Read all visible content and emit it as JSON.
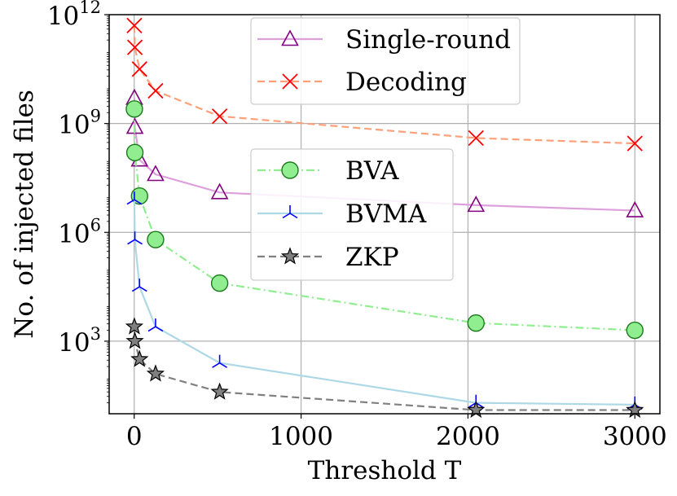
{
  "chart_data": {
    "type": "line",
    "xlabel": "Threshold T",
    "ylabel": "No. of injected files",
    "xlim": [
      -150,
      3150
    ],
    "ylim_log10": [
      1,
      12
    ],
    "yscale": "log",
    "grid": true,
    "x_ticks": [
      0,
      1000,
      2000,
      3000
    ],
    "y_ticks": [
      {
        "base": "10",
        "exp": "3",
        "log10": 3
      },
      {
        "base": "10",
        "exp": "6",
        "log10": 6
      },
      {
        "base": "10",
        "exp": "9",
        "log10": 9
      },
      {
        "base": "10",
        "exp": "12",
        "log10": 12
      }
    ],
    "legend_groups": [
      {
        "position": "top-center",
        "series": [
          "Single-round",
          "Decoding"
        ]
      },
      {
        "position": "center",
        "series": [
          "BVA",
          "BVMA",
          "ZKP"
        ]
      }
    ],
    "series": [
      {
        "name": "Single-round",
        "color": "#dda0dd",
        "marker_color": "#800080",
        "marker": "triangle",
        "dash": "solid",
        "x": [
          1,
          4,
          32,
          128,
          512,
          2048,
          3000
        ],
        "log10_y": [
          9.7,
          8.9,
          8.0,
          7.6,
          7.1,
          6.75,
          6.6
        ]
      },
      {
        "name": "Decoding",
        "color": "#ffa07a",
        "marker_color": "#ff0000",
        "marker": "x",
        "dash": "dashed",
        "x": [
          1,
          4,
          32,
          128,
          512,
          2048,
          3000
        ],
        "log10_y": [
          11.7,
          11.1,
          10.5,
          9.9,
          9.2,
          8.6,
          8.45
        ]
      },
      {
        "name": "BVA",
        "color": "#90ee90",
        "marker_color": "#32cd32",
        "marker": "circle",
        "dash": "dashdot",
        "x": [
          1,
          4,
          32,
          128,
          512,
          2048,
          3000
        ],
        "log10_y": [
          9.4,
          8.2,
          7.0,
          5.8,
          4.6,
          3.5,
          3.3
        ]
      },
      {
        "name": "BVMA",
        "color": "#add8e6",
        "marker_color": "#0000ff",
        "marker": "tri_down",
        "dash": "solid",
        "x": [
          1,
          4,
          32,
          128,
          512,
          2048,
          3000
        ],
        "log10_y": [
          6.9,
          5.8,
          4.5,
          3.4,
          2.4,
          1.3,
          1.25
        ]
      },
      {
        "name": "ZKP",
        "color": "#808080",
        "marker_color": "#000000",
        "marker": "star",
        "dash": "dashed",
        "x": [
          1,
          4,
          32,
          128,
          512,
          2048,
          3000
        ],
        "log10_y": [
          3.4,
          3.0,
          2.5,
          2.1,
          1.6,
          1.1,
          1.1
        ]
      }
    ]
  }
}
